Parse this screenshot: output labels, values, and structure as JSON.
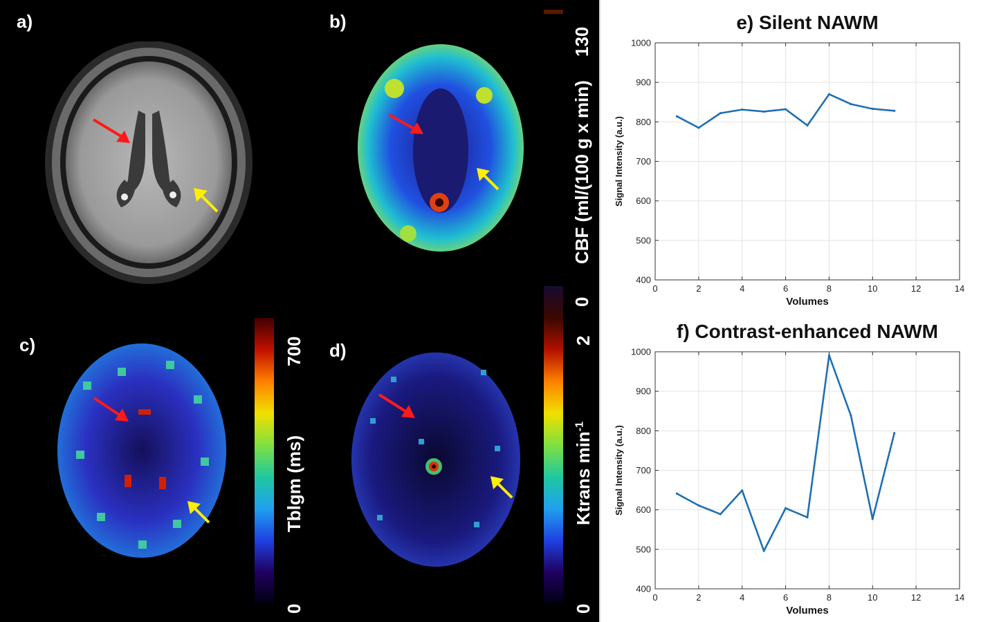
{
  "panels": {
    "a": {
      "label": "a)"
    },
    "b": {
      "label": "b)",
      "colorbar": {
        "max": "130",
        "title": "CBF (ml/(100 g x min)"
      }
    },
    "c": {
      "label": "c)",
      "colorbar": {
        "max": "700",
        "min": "0",
        "title": "Tblgm (ms)"
      }
    },
    "d": {
      "label": "d)",
      "colorbar": {
        "max": "2",
        "min": "0",
        "title": "Ktrans min",
        "sup": "-1"
      }
    },
    "b_zero": "0"
  },
  "colors": {
    "line": "#1f6fb2",
    "red_arrow": "#ff1a1a",
    "yellow_arrow": "#ffee00"
  },
  "chart_data": [
    {
      "id": "e",
      "type": "line",
      "title": "e) Silent NAWM",
      "xlabel": "Volumes",
      "ylabel": "Signal Intensity (a.u.)",
      "xlim": [
        0,
        14
      ],
      "ylim": [
        400,
        1000
      ],
      "xticks": [
        "0",
        "2",
        "4",
        "6",
        "8",
        "10",
        "12",
        "14"
      ],
      "yticks": [
        "400",
        "500",
        "600",
        "700",
        "800",
        "900",
        "1000"
      ],
      "x": [
        1,
        2,
        3,
        4,
        5,
        6,
        7,
        8,
        9,
        10,
        11
      ],
      "values": [
        814,
        785,
        822,
        831,
        826,
        832,
        791,
        870,
        845,
        833,
        828
      ],
      "grid": true
    },
    {
      "id": "f",
      "type": "line",
      "title": "f) Contrast-enhanced NAWM",
      "xlabel": "Volumes",
      "ylabel": "Signal Intensity (a.u.)",
      "xlim": [
        0,
        14
      ],
      "ylim": [
        400,
        1000
      ],
      "xticks": [
        "0",
        "2",
        "4",
        "6",
        "8",
        "10",
        "12",
        "14"
      ],
      "yticks": [
        "400",
        "500",
        "600",
        "700",
        "800",
        "900",
        "1000"
      ],
      "x": [
        1,
        2,
        3,
        4,
        5,
        6,
        7,
        8,
        9,
        10,
        11
      ],
      "values": [
        641,
        611,
        589,
        649,
        496,
        604,
        581,
        991,
        839,
        577,
        794
      ],
      "grid": true
    }
  ]
}
